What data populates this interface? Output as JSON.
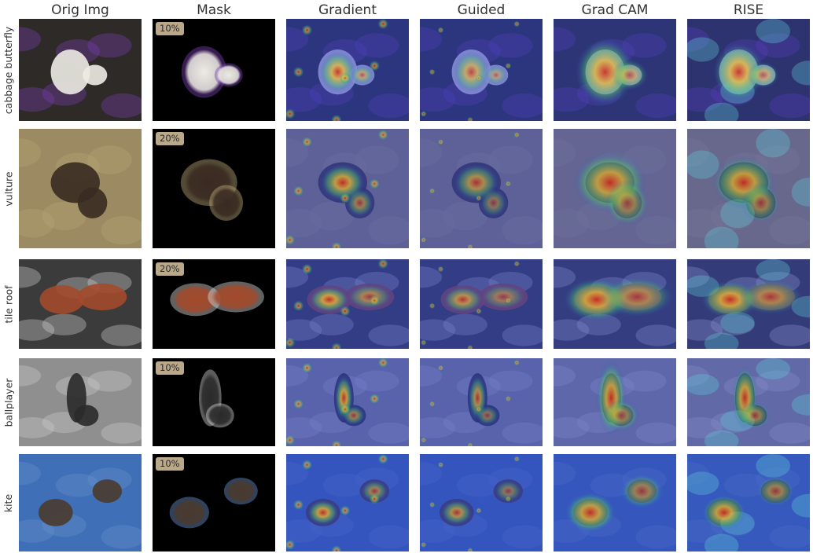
{
  "columns": [
    "Orig Img",
    "Mask",
    "Gradient",
    "Guided",
    "Grad CAM",
    "RISE"
  ],
  "rows": [
    {
      "label": "cabbage butterfly",
      "mask_percent": "10%",
      "palette": {
        "bg": "#2e2a28",
        "accent": "#7a3fb4",
        "subject": "#ecebe3",
        "hotspot": "#c9a23a"
      }
    },
    {
      "label": "vulture",
      "mask_percent": "20%",
      "palette": {
        "bg": "#9c8a62",
        "accent": "#b8a775",
        "subject": "#3a2a22",
        "hotspot": "#d23d22"
      }
    },
    {
      "label": "tile roof",
      "mask_percent": "20%",
      "palette": {
        "bg": "#3b3b3b",
        "accent": "#d8d8d6",
        "subject": "#a34a2b",
        "hotspot": "#e04a1e"
      }
    },
    {
      "label": "ballplayer",
      "mask_percent": "10%",
      "palette": {
        "bg": "#8f8f8f",
        "accent": "#cfcfcf",
        "subject": "#2a2a2a",
        "hotspot": "#e14a1e"
      }
    },
    {
      "label": "kite",
      "mask_percent": "10%",
      "palette": {
        "bg": "#3f6fb6",
        "accent": "#6b93cf",
        "subject": "#4a3a2e",
        "hotspot": "#e0401f"
      }
    }
  ]
}
